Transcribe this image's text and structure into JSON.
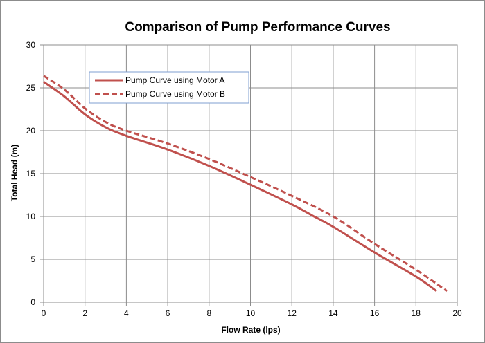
{
  "chart_data": {
    "type": "line",
    "title": "Comparison of Pump Performance Curves",
    "xlabel": "Flow Rate (lps)",
    "ylabel": "Total Head (m)",
    "xlim": [
      0,
      20
    ],
    "ylim": [
      0,
      30
    ],
    "x_ticks": [
      "0",
      "2",
      "4",
      "6",
      "8",
      "10",
      "12",
      "14",
      "16",
      "18",
      "20"
    ],
    "y_ticks": [
      "0",
      "5",
      "10",
      "15",
      "20",
      "25",
      "30"
    ],
    "grid": true,
    "legend_position": "upper-left",
    "series": [
      {
        "name": "Pump Curve using Motor A",
        "style": "solid",
        "color": "#c0504d",
        "points": [
          [
            0,
            25.7
          ],
          [
            1,
            24.0
          ],
          [
            2,
            21.9
          ],
          [
            3,
            20.4
          ],
          [
            4,
            19.4
          ],
          [
            6,
            17.8
          ],
          [
            8,
            15.9
          ],
          [
            10,
            13.7
          ],
          [
            12,
            11.4
          ],
          [
            13,
            10.1
          ],
          [
            14,
            8.8
          ],
          [
            16,
            5.8
          ],
          [
            18,
            3.0
          ],
          [
            19,
            1.3
          ]
        ]
      },
      {
        "name": "Pump Curve using Motor B",
        "style": "dashed",
        "color": "#c0504d",
        "points": [
          [
            0,
            26.4
          ],
          [
            1,
            24.8
          ],
          [
            2,
            22.6
          ],
          [
            3,
            21.0
          ],
          [
            4,
            20.0
          ],
          [
            6,
            18.5
          ],
          [
            8,
            16.7
          ],
          [
            10,
            14.6
          ],
          [
            12,
            12.4
          ],
          [
            14,
            10.0
          ],
          [
            16,
            6.8
          ],
          [
            18,
            3.8
          ],
          [
            19.5,
            1.3
          ]
        ]
      }
    ]
  }
}
